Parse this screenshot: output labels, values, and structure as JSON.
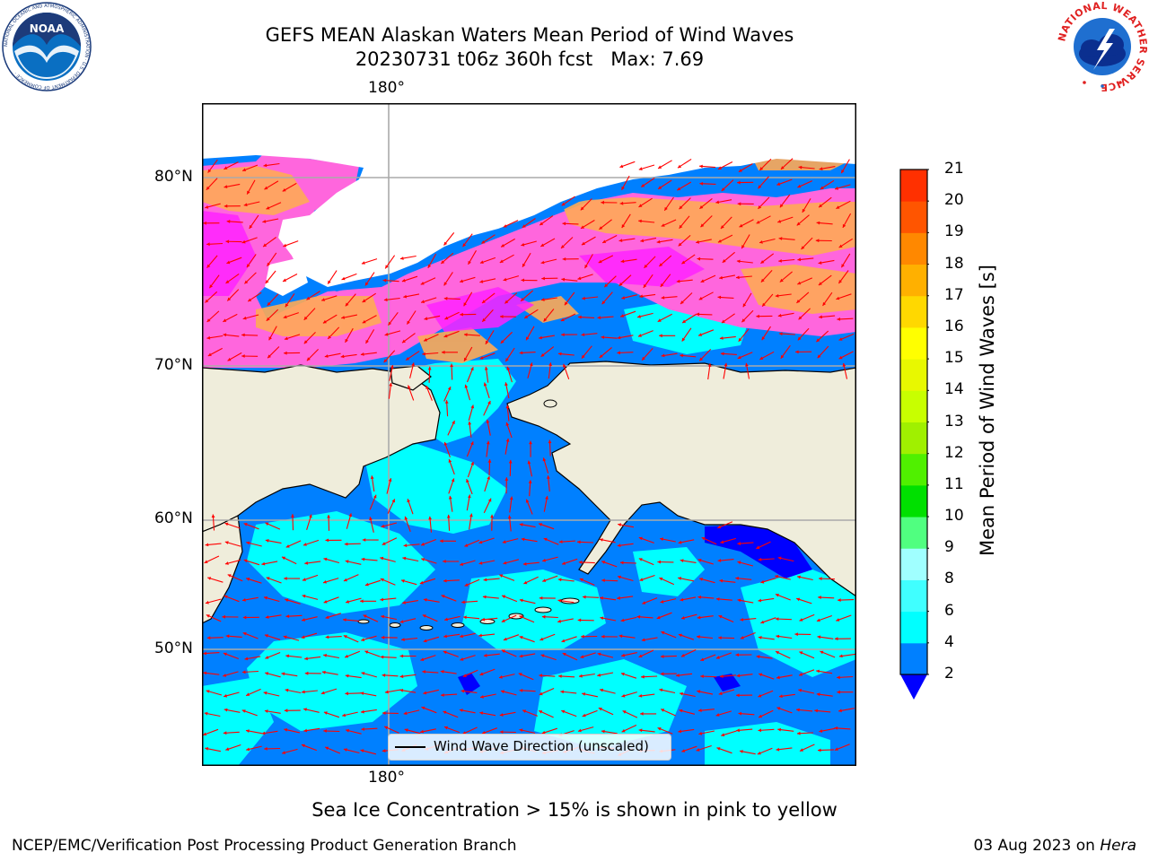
{
  "title_line1": "GEFS MEAN Alaskan Waters Mean Period of Wind Waves",
  "title_line2": "20230731 t06z 360h fcst   Max: 7.69",
  "caption": "Sea Ice Concentration > 15% is shown in pink to yellow",
  "credit_left": "NCEP/EMC/Verification Post Processing Product Generation Branch",
  "credit_right_date": "03 Aug 2023 on ",
  "credit_right_host": "Hera",
  "logos": {
    "noaa_text": "NOAA",
    "noaa_ring": "NATIONAL OCEANIC AND ATMOSPHERIC ADMINISTRATION · U.S. DEPARTMENT OF COMMERCE ·",
    "nws_ring": "NATIONAL WEATHER SERVICE"
  },
  "map": {
    "lon_label_top": "180°",
    "lon_label_bottom": "180°",
    "lat_labels": [
      "80°N",
      "70°N",
      "60°N",
      "50°N"
    ],
    "legend_label": "Wind Wave Direction (unscaled)",
    "land_color": "#efeddb",
    "ocean_colors": [
      "#0080ff",
      "#00ffff",
      "#0000ff"
    ],
    "ice_colors": [
      "#ff22ff",
      "#ff66dd",
      "#ffaa55",
      "#ffbb33"
    ],
    "arrow_color": "#ff0000"
  },
  "colorbar": {
    "label": "Mean Period of Wind Waves [s]",
    "ticks": [
      "2",
      "4",
      "6",
      "8",
      "9",
      "10",
      "11",
      "12",
      "13",
      "14",
      "15",
      "16",
      "17",
      "18",
      "19",
      "20",
      "21"
    ],
    "colors": [
      "#0080ff",
      "#00ffff",
      "#40ffff",
      "#a0ffff",
      "#50ff80",
      "#00e000",
      "#50f000",
      "#a0f000",
      "#c8ff00",
      "#e8f800",
      "#ffff00",
      "#ffd800",
      "#ffb000",
      "#ff8800",
      "#ff5500",
      "#ff3000",
      "#ff0000"
    ],
    "extend_color": "#0000ff"
  }
}
